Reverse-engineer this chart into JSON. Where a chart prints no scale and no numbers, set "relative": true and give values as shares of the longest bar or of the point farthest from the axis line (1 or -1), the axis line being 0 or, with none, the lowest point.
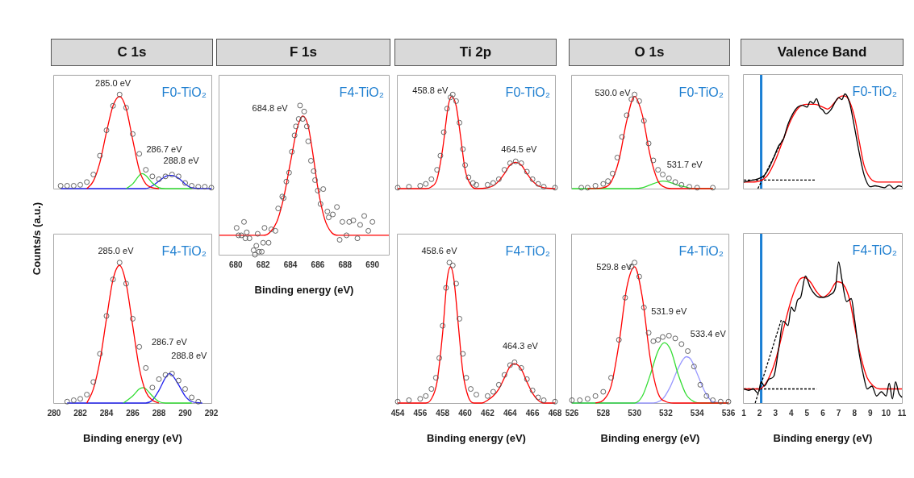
{
  "chart_data": [
    {
      "type": "line",
      "title": "C 1s",
      "ylabel": "Counts/s (a.u.)",
      "relative": true,
      "xlim": [
        280,
        292
      ],
      "xticks": [
        280,
        282,
        284,
        286,
        288,
        290,
        292
      ],
      "tick_labels": false,
      "annotations": [
        "F0-TiO₂",
        "285.0 eV",
        "286.7 eV",
        "288.8 eV"
      ],
      "series": [
        {
          "type": "scatter",
          "marker": "circle",
          "color": "#555555",
          "x": [
            280.5,
            281,
            281.5,
            282,
            282.5,
            283,
            283.5,
            284,
            284.5,
            285,
            285.5,
            286,
            286.5,
            287,
            287.5,
            288,
            288.5,
            289,
            289.5,
            290,
            290.5,
            291,
            291.5,
            292
          ],
          "values": [
            0.03,
            0.03,
            0.03,
            0.04,
            0.07,
            0.15,
            0.35,
            0.62,
            0.88,
            1.0,
            0.86,
            0.58,
            0.37,
            0.2,
            0.13,
            0.1,
            0.13,
            0.15,
            0.13,
            0.06,
            0.03,
            0.02,
            0.02,
            0.01
          ]
        },
        {
          "type": "line",
          "color": "#ff0000",
          "x": [
            282.5,
            283,
            283.5,
            284,
            284.5,
            285,
            285.5,
            286,
            286.5,
            287,
            287.5,
            288
          ],
          "values": [
            0,
            0.08,
            0.28,
            0.6,
            0.88,
            0.98,
            0.85,
            0.52,
            0.2,
            0.05,
            0.01,
            0
          ]
        },
        {
          "type": "line",
          "color": "#33dd33",
          "x": [
            285.5,
            286,
            286.5,
            286.7,
            287,
            287.5,
            288,
            288.5,
            290.5
          ],
          "values": [
            0,
            0.05,
            0.14,
            0.16,
            0.14,
            0.06,
            0.01,
            0,
            0
          ]
        },
        {
          "type": "line",
          "color": "#2222ee",
          "x": [
            280.5,
            287,
            287.5,
            288,
            288.5,
            288.8,
            289,
            289.5,
            290,
            290.5,
            292
          ],
          "values": [
            0,
            0,
            0.03,
            0.08,
            0.13,
            0.14,
            0.14,
            0.11,
            0.05,
            0.01,
            0
          ]
        }
      ]
    },
    {
      "type": "line",
      "xlabel": "Binding energy (eV)",
      "relative": true,
      "xlim": [
        280,
        292
      ],
      "xticks": [
        280,
        282,
        284,
        286,
        288,
        290,
        292
      ],
      "tick_labels": "x",
      "annotations": [
        "F4-TiO₂",
        "285.0 eV",
        "286.7 eV",
        "288.8 eV"
      ],
      "series": [
        {
          "type": "scatter",
          "marker": "circle",
          "color": "#555555",
          "x": [
            281,
            281.5,
            282,
            282.5,
            283,
            283.5,
            284,
            284.5,
            285,
            285.5,
            286,
            286.5,
            287,
            287.5,
            288,
            288.5,
            289,
            289.5,
            290,
            290.5,
            291
          ],
          "values": [
            0.01,
            0.02,
            0.03,
            0.06,
            0.15,
            0.35,
            0.62,
            0.88,
            1.0,
            0.85,
            0.6,
            0.4,
            0.25,
            0.11,
            0.17,
            0.2,
            0.21,
            0.16,
            0.1,
            0.04,
            0.01
          ]
        },
        {
          "type": "line",
          "color": "#ff0000",
          "x": [
            282.5,
            283,
            283.5,
            284,
            284.5,
            285,
            285.5,
            286,
            286.5,
            287,
            287.5,
            288
          ],
          "values": [
            0,
            0.1,
            0.3,
            0.6,
            0.88,
            0.98,
            0.85,
            0.55,
            0.25,
            0.08,
            0.02,
            0
          ]
        },
        {
          "type": "line",
          "color": "#33dd33",
          "x": [
            285.3,
            286,
            286.5,
            286.8,
            287,
            287.5,
            288,
            288.5,
            290.5
          ],
          "values": [
            0,
            0.05,
            0.1,
            0.11,
            0.1,
            0.05,
            0.01,
            0,
            0
          ]
        },
        {
          "type": "line",
          "color": "#2222ee",
          "x": [
            281,
            287,
            287.5,
            288,
            288.5,
            288.8,
            289,
            289.5,
            290,
            290.5,
            291.3
          ],
          "values": [
            0,
            0,
            0.02,
            0.09,
            0.18,
            0.21,
            0.2,
            0.13,
            0.05,
            0.01,
            0
          ]
        }
      ]
    },
    {
      "type": "line",
      "title": "F 1s",
      "xlabel": "Binding energy (eV)",
      "relative": true,
      "xlim": [
        678.8,
        691.2
      ],
      "xticks": [
        680,
        682,
        684,
        686,
        688,
        690
      ],
      "tick_labels": "x",
      "annotations": [
        "F4-TiO₂",
        "684.8 eV"
      ],
      "series": [
        {
          "type": "scatter",
          "marker": "circle",
          "color": "#555555",
          "x": [
            680.06,
            680.2,
            680.4,
            680.6,
            680.7,
            680.8,
            681.0,
            681.3,
            681.4,
            681.5,
            681.6,
            681.7,
            681.9,
            682.0,
            682.1,
            682.4,
            682.6,
            682.9,
            683.1,
            683.4,
            683.5,
            683.7,
            683.9,
            684.1,
            684.3,
            684.4,
            684.6,
            684.7,
            684.9,
            685.0,
            685.2,
            685.3,
            685.5,
            685.7,
            685.8,
            686.0,
            686.2,
            686.4,
            686.7,
            686.8,
            687.1,
            687.4,
            687.6,
            687.8,
            688.1,
            688.3,
            688.6,
            688.9,
            689.1,
            689.4,
            689.7,
            690.0
          ],
          "values": [
            0.18,
            0.13,
            0.13,
            0.22,
            0.11,
            0.15,
            0.11,
            0.03,
            0,
            0.06,
            0.14,
            0.02,
            0.02,
            0.08,
            0.18,
            0.08,
            0.17,
            0.16,
            0.31,
            0.39,
            0.38,
            0.49,
            0.55,
            0.69,
            0.8,
            0.86,
            0.91,
            1.0,
            0.91,
            0.96,
            0.86,
            0.76,
            0.63,
            0.56,
            0.5,
            0.43,
            0.34,
            0.44,
            0.29,
            0.25,
            0.27,
            0.32,
            0.1,
            0.22,
            0.13,
            0.22,
            0.23,
            0.11,
            0.2,
            0.26,
            0.16,
            0.22
          ]
        },
        {
          "type": "line",
          "color": "#ff0000",
          "x": [
            678.8,
            682,
            682.5,
            683,
            683.5,
            684,
            684.5,
            684.9,
            685.3,
            685.7,
            686,
            686.5,
            687,
            687.5,
            691.2
          ],
          "values": [
            0.13,
            0.13,
            0.15,
            0.22,
            0.38,
            0.62,
            0.85,
            0.93,
            0.86,
            0.64,
            0.45,
            0.24,
            0.15,
            0.13,
            0.13
          ]
        }
      ]
    },
    {
      "type": "line",
      "title": "Ti 2p",
      "relative": true,
      "xlim": [
        454,
        468
      ],
      "xticks": [
        454,
        456,
        458,
        460,
        462,
        464,
        466,
        468
      ],
      "tick_labels": false,
      "annotations": [
        "F0-TiO₂",
        "458.8 eV",
        "464.5 eV"
      ],
      "series": [
        {
          "type": "scatter",
          "marker": "circle",
          "color": "#555555",
          "x": [
            454,
            455,
            456,
            456.5,
            457,
            457.5,
            457.8,
            458.1,
            458.4,
            458.7,
            458.9,
            459.2,
            459.5,
            459.8,
            460,
            460.3,
            460.7,
            461,
            462,
            462.5,
            463,
            463.5,
            464,
            464.5,
            465,
            465.5,
            466,
            466.5,
            467,
            468
          ],
          "values": [
            0.01,
            0.02,
            0.03,
            0.05,
            0.1,
            0.2,
            0.35,
            0.6,
            0.85,
            0.97,
            1.0,
            0.93,
            0.7,
            0.42,
            0.25,
            0.12,
            0.06,
            0.04,
            0.04,
            0.06,
            0.1,
            0.2,
            0.27,
            0.29,
            0.27,
            0.18,
            0.1,
            0.05,
            0.02,
            0.01
          ]
        },
        {
          "type": "line",
          "color": "#ff0000",
          "x": [
            454,
            456.5,
            457,
            457.5,
            458,
            458.5,
            458.8,
            459.2,
            459.6,
            460,
            460.5,
            461,
            462,
            462.5,
            463,
            463.5,
            464,
            464.5,
            465,
            465.5,
            466,
            466.5,
            467,
            468
          ],
          "values": [
            0,
            0,
            0.02,
            0.1,
            0.42,
            0.88,
            0.98,
            0.88,
            0.55,
            0.2,
            0.04,
            0,
            0.01,
            0.03,
            0.08,
            0.16,
            0.25,
            0.28,
            0.25,
            0.16,
            0.08,
            0.03,
            0.01,
            0
          ]
        }
      ]
    },
    {
      "type": "line",
      "xlabel": "Binding energy (eV)",
      "relative": true,
      "xlim": [
        454,
        468
      ],
      "xticks": [
        454,
        456,
        458,
        460,
        462,
        464,
        466,
        468
      ],
      "tick_labels": "x",
      "annotations": [
        "F4-TiO₂",
        "458.6 eV",
        "464.3 eV"
      ],
      "series": [
        {
          "type": "scatter",
          "marker": "circle",
          "color": "#555555",
          "x": [
            454,
            455,
            456,
            456.5,
            457,
            457.4,
            457.7,
            458,
            458.3,
            458.6,
            458.9,
            459.2,
            459.5,
            459.8,
            460.1,
            460.5,
            461,
            462,
            462.5,
            463,
            463.5,
            464,
            464.4,
            465,
            465.5,
            466,
            466.5,
            467,
            468
          ],
          "values": [
            0.01,
            0.02,
            0.03,
            0.05,
            0.1,
            0.18,
            0.32,
            0.55,
            0.82,
            1.0,
            0.98,
            0.85,
            0.6,
            0.35,
            0.18,
            0.1,
            0.06,
            0.05,
            0.08,
            0.13,
            0.2,
            0.27,
            0.29,
            0.25,
            0.17,
            0.09,
            0.04,
            0.02,
            0.01
          ]
        },
        {
          "type": "line",
          "color": "#ff0000",
          "x": [
            454,
            456.5,
            457,
            457.5,
            458,
            458.4,
            458.7,
            459,
            459.4,
            459.8,
            460.3,
            460.8,
            461.5,
            462,
            462.5,
            463,
            463.5,
            464,
            464.4,
            465,
            465.5,
            466,
            466.5,
            467,
            468
          ],
          "values": [
            0,
            0,
            0.03,
            0.15,
            0.5,
            0.88,
            0.97,
            0.88,
            0.55,
            0.22,
            0.04,
            0,
            0,
            0.02,
            0.05,
            0.1,
            0.18,
            0.26,
            0.28,
            0.24,
            0.15,
            0.07,
            0.02,
            0,
            0
          ]
        }
      ]
    },
    {
      "type": "line",
      "title": "O 1s",
      "relative": true,
      "xlim": [
        526,
        536
      ],
      "xticks": [
        526,
        528,
        530,
        532,
        534,
        536
      ],
      "tick_labels": false,
      "annotations": [
        "F0-TiO₂",
        "530.0 eV",
        "531.7 eV"
      ],
      "series": [
        {
          "type": "scatter",
          "marker": "circle",
          "color": "#555555",
          "x": [
            526.6,
            527,
            527.5,
            528,
            528.3,
            528.6,
            528.9,
            529.2,
            529.5,
            529.8,
            530,
            530.3,
            530.6,
            530.9,
            531.2,
            531.5,
            531.8,
            532.2,
            532.6,
            533,
            533.5,
            534,
            535
          ],
          "values": [
            0.01,
            0.01,
            0.03,
            0.05,
            0.08,
            0.16,
            0.33,
            0.55,
            0.78,
            0.95,
            1.0,
            0.93,
            0.72,
            0.48,
            0.3,
            0.2,
            0.15,
            0.11,
            0.07,
            0.04,
            0.02,
            0.01,
            0.01
          ]
        },
        {
          "type": "line",
          "color": "#ff0000",
          "x": [
            527,
            528,
            528.5,
            529,
            529.5,
            530,
            530.5,
            531,
            531.5,
            532,
            532.5,
            535
          ],
          "values": [
            0,
            0.01,
            0.07,
            0.3,
            0.72,
            0.98,
            0.78,
            0.35,
            0.08,
            0.01,
            0,
            0
          ]
        },
        {
          "type": "line",
          "color": "#33dd33",
          "x": [
            526,
            530,
            530.5,
            531,
            531.5,
            531.8,
            532.2,
            532.7,
            533.2,
            533.7,
            535
          ],
          "values": [
            0,
            0,
            0.01,
            0.04,
            0.07,
            0.08,
            0.07,
            0.04,
            0.02,
            0,
            0
          ]
        }
      ]
    },
    {
      "type": "line",
      "xlabel": "Binding energy (eV)",
      "relative": true,
      "xlim": [
        526,
        536
      ],
      "xticks": [
        526,
        528,
        530,
        532,
        534,
        536
      ],
      "tick_labels": "x",
      "annotations": [
        "F4-TiO₂",
        "529.8 eV",
        "531.9 eV",
        "533.4 eV"
      ],
      "series": [
        {
          "type": "scatter",
          "marker": "circle",
          "color": "#555555",
          "x": [
            526,
            526.5,
            527,
            527.5,
            528,
            528.5,
            529,
            529.4,
            529.8,
            530,
            530.3,
            530.6,
            530.9,
            531.2,
            531.5,
            531.8,
            532.2,
            532.6,
            533,
            533.4,
            533.8,
            534.2,
            534.6,
            535,
            535.5,
            536
          ],
          "values": [
            0.02,
            0.02,
            0.03,
            0.05,
            0.08,
            0.18,
            0.45,
            0.75,
            0.97,
            1.0,
            0.9,
            0.68,
            0.5,
            0.44,
            0.45,
            0.47,
            0.48,
            0.46,
            0.42,
            0.37,
            0.26,
            0.13,
            0.05,
            0.02,
            0.01,
            0.01
          ]
        },
        {
          "type": "line",
          "color": "#ff0000",
          "x": [
            527.5,
            528,
            528.5,
            529,
            529.5,
            530,
            530.5,
            531,
            531.5,
            532,
            532.5,
            536
          ],
          "values": [
            0,
            0.02,
            0.12,
            0.42,
            0.82,
            0.97,
            0.75,
            0.32,
            0.07,
            0.01,
            0,
            0
          ]
        },
        {
          "type": "line",
          "color": "#33dd33",
          "x": [
            526,
            530,
            530.5,
            531,
            531.5,
            531.9,
            532.3,
            532.8,
            533.3,
            533.8,
            534.3,
            536
          ],
          "values": [
            0,
            0,
            0.05,
            0.2,
            0.37,
            0.43,
            0.38,
            0.2,
            0.06,
            0.01,
            0,
            0
          ]
        },
        {
          "type": "line",
          "color": "#9999ff",
          "x": [
            526,
            531,
            531.8,
            532.3,
            532.8,
            533.3,
            533.6,
            534,
            534.5,
            535,
            536
          ],
          "values": [
            0,
            0,
            0.03,
            0.12,
            0.25,
            0.33,
            0.31,
            0.21,
            0.08,
            0.01,
            0
          ]
        }
      ]
    },
    {
      "type": "line",
      "title": "Valence Band",
      "relative": true,
      "xlim": [
        1,
        11
      ],
      "xticks": [
        1,
        2,
        3,
        4,
        5,
        6,
        7,
        8,
        9,
        10,
        11
      ],
      "tick_labels": false,
      "annotations": [
        "F0-TiO₂"
      ],
      "ref_lines": [
        {
          "axis": "x",
          "value": 2.1,
          "color": "#1a7fd4"
        }
      ],
      "series": [
        {
          "type": "line",
          "color": "#000000",
          "x": [
            1,
            1.3,
            1.6,
            2,
            2.3,
            2.6,
            2.9,
            3.2,
            3.5,
            3.8,
            4.1,
            4.4,
            4.7,
            5,
            5.2,
            5.4,
            5.6,
            5.8,
            6,
            6.2,
            6.5,
            6.8,
            7,
            7.2,
            7.4,
            7.7,
            8,
            8.3,
            8.6,
            8.8,
            9,
            9.3,
            9.6,
            9.9,
            10.2,
            10.5,
            10.8,
            11
          ],
          "values": [
            0.07,
            0.08,
            0.09,
            0.11,
            0.14,
            0.22,
            0.33,
            0.45,
            0.52,
            0.68,
            0.79,
            0.86,
            0.88,
            0.86,
            0.92,
            0.9,
            0.95,
            0.86,
            0.83,
            0.79,
            0.83,
            0.92,
            0.96,
            0.94,
            1.0,
            0.9,
            0.65,
            0.38,
            0.15,
            0.06,
            0.02,
            0.03,
            0.02,
            0.01,
            0.04,
            0,
            0.03,
            0.02
          ]
        },
        {
          "type": "line",
          "color": "#ff0000",
          "x": [
            1,
            1.5,
            2,
            2.5,
            3,
            3.5,
            4,
            4.5,
            5,
            5.5,
            6,
            6.3,
            6.7,
            7,
            7.3,
            7.6,
            8,
            8.3,
            8.6,
            9,
            9.5,
            11
          ],
          "values": [
            0.07,
            0.07,
            0.08,
            0.14,
            0.3,
            0.52,
            0.73,
            0.86,
            0.89,
            0.89,
            0.86,
            0.84,
            0.9,
            0.96,
            0.98,
            0.95,
            0.76,
            0.5,
            0.25,
            0.11,
            0.07,
            0.07
          ]
        },
        {
          "type": "line",
          "line_style": "dashed",
          "color": "#000000",
          "x": [
            1.89,
            3.5
          ],
          "values": [
            0,
            0.53
          ]
        },
        {
          "type": "line",
          "line_style": "dashed",
          "color": "#000000",
          "x": [
            1,
            5.5
          ],
          "values": [
            0.09,
            0.09
          ]
        }
      ]
    },
    {
      "type": "line",
      "xlabel": "Binding energy (eV)",
      "relative": true,
      "xlim": [
        1,
        11
      ],
      "xticks": [
        1,
        2,
        3,
        4,
        5,
        6,
        7,
        8,
        9,
        10,
        11
      ],
      "tick_labels": "x",
      "annotations": [
        "F4-TiO₂"
      ],
      "ref_lines": [
        {
          "axis": "x",
          "value": 2.1,
          "color": "#1a7fd4"
        }
      ],
      "series": [
        {
          "type": "line",
          "color": "#000000",
          "x": [
            1,
            1.3,
            1.6,
            1.9,
            2.1,
            2.3,
            2.6,
            2.9,
            3.2,
            3.5,
            3.8,
            4,
            4.2,
            4.4,
            4.6,
            4.9,
            5.2,
            5.5,
            5.8,
            6.1,
            6.5,
            6.8,
            7,
            7.2,
            7.5,
            7.8,
            8,
            8.3,
            8.6,
            8.8,
            9.1,
            9.4,
            9.7,
            10,
            10.2,
            10.4,
            10.6,
            10.8,
            11
          ],
          "values": [
            0.1,
            0.09,
            0.1,
            0.07,
            0.15,
            0.12,
            0.17,
            0.19,
            0.38,
            0.58,
            0.55,
            0.68,
            0.65,
            0.73,
            0.75,
            0.9,
            0.82,
            0.77,
            0.75,
            0.75,
            0.77,
            0.82,
            1.0,
            0.88,
            0.72,
            0.74,
            0.6,
            0.35,
            0.18,
            0.1,
            0.12,
            0.05,
            0.08,
            0.05,
            0.14,
            0.03,
            0.15,
            0.07,
            0.04
          ]
        },
        {
          "type": "line",
          "color": "#ff0000",
          "x": [
            1,
            1.5,
            2,
            2.5,
            3,
            3.5,
            4,
            4.5,
            4.8,
            5.2,
            5.6,
            6,
            6.4,
            6.9,
            7.3,
            7.7,
            8,
            8.4,
            8.8,
            9.2,
            9.6,
            11
          ],
          "values": [
            0.1,
            0.1,
            0.1,
            0.16,
            0.3,
            0.52,
            0.73,
            0.87,
            0.89,
            0.86,
            0.79,
            0.75,
            0.78,
            0.86,
            0.84,
            0.73,
            0.55,
            0.33,
            0.18,
            0.12,
            0.1,
            0.1
          ]
        },
        {
          "type": "line",
          "line_style": "dashed",
          "color": "#000000",
          "x": [
            1.72,
            3.4
          ],
          "values": [
            0,
            0.6
          ]
        },
        {
          "type": "line",
          "line_style": "dashed",
          "color": "#000000",
          "x": [
            1,
            5.6
          ],
          "values": [
            0.1,
            0.1
          ]
        }
      ]
    }
  ]
}
